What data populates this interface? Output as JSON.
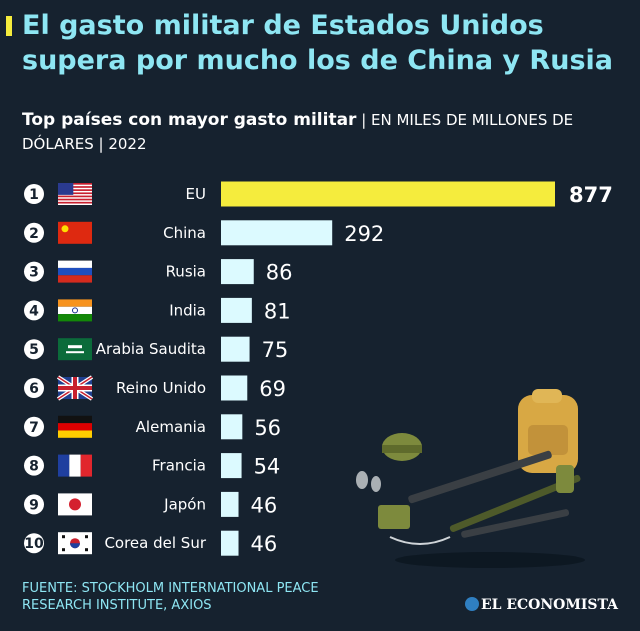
{
  "headline": "El gasto militar de Estados Unidos supera por mucho los de China y Rusia",
  "subtitle_strong": "Top países con mayor gasto militar",
  "subtitle_rest": " | EN MILES DE MILLONES DE DÓLARES | 2022",
  "source": [
    "FUENTE: STOCKHOLM INTERNATIONAL PEACE",
    "RESEARCH INSTITUTE, AXIOS"
  ],
  "brand": "EL ECONOMISTA",
  "colors": {
    "background": "#16222f",
    "title": "#8ee6f3",
    "highlight_bar": "#f5ec3d",
    "bar": "#dcfaff"
  },
  "chart_data": {
    "type": "bar",
    "orientation": "horizontal",
    "ranks": [
      "1",
      "2",
      "3",
      "4",
      "5",
      "6",
      "7",
      "8",
      "9",
      "10"
    ],
    "categories": [
      "EU",
      "China",
      "Rusia",
      "India",
      "Arabia Saudita",
      "Reino Unido",
      "Alemania",
      "Francia",
      "Japón",
      "Corea del Sur"
    ],
    "values": [
      877,
      292,
      86,
      81,
      75,
      69,
      56,
      54,
      46,
      46
    ],
    "value_labels": [
      "877",
      "292",
      "86",
      "81",
      "75",
      "69",
      "56",
      "54",
      "46",
      "46"
    ],
    "flags": [
      "us-flag",
      "china-flag",
      "russia-flag",
      "india-flag",
      "saudi-arabia-flag",
      "uk-flag",
      "germany-flag",
      "france-flag",
      "japan-flag",
      "south-korea-flag"
    ],
    "highlight_index": 0
  }
}
